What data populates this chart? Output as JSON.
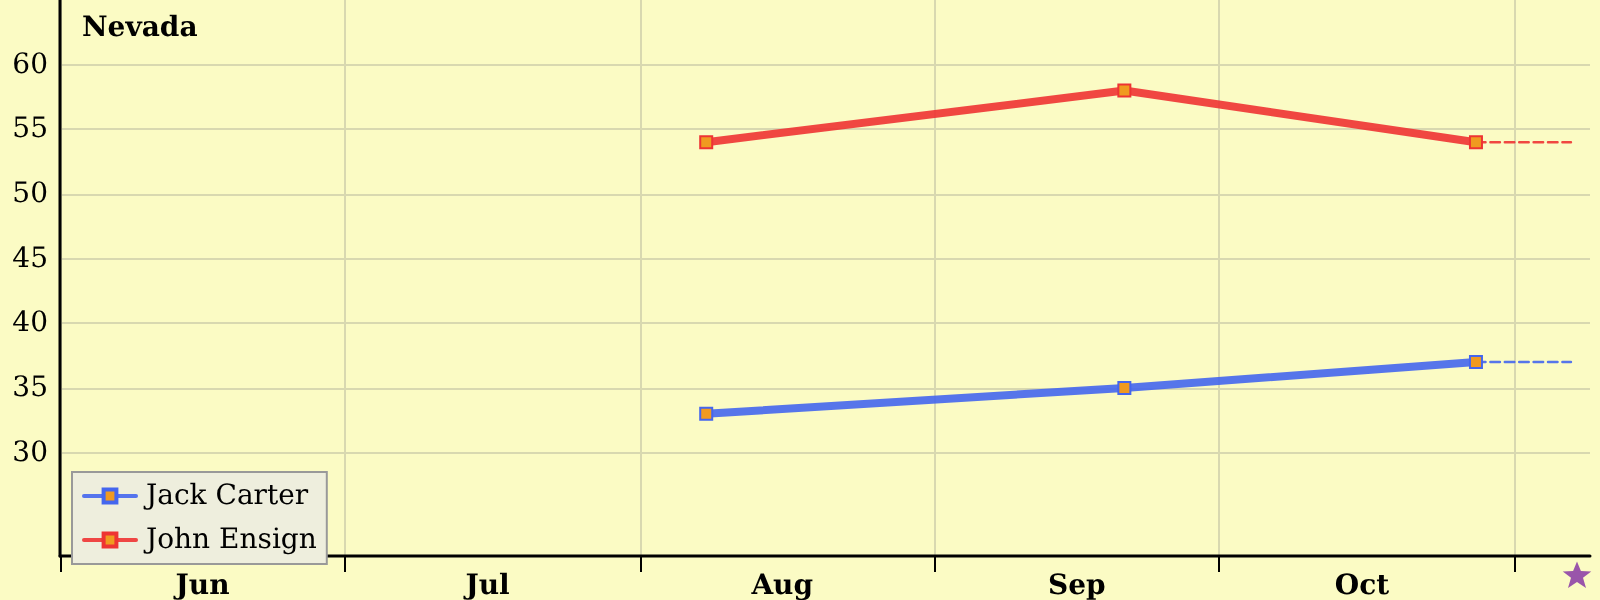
{
  "chart_data": {
    "type": "line",
    "title": "Nevada",
    "xlim": [
      "--06-01",
      "--11-09"
    ],
    "xticks": [
      {
        "value": "--06-01",
        "label": null
      },
      {
        "value": "--06-16",
        "label": "Jun"
      },
      {
        "value": "--07-01",
        "label": null
      },
      {
        "value": "--07-16",
        "label": "Jul"
      },
      {
        "value": "--08-01",
        "label": null
      },
      {
        "value": "--08-16",
        "label": "Aug"
      },
      {
        "value": "--09-01",
        "label": null
      },
      {
        "value": "--09-16",
        "label": "Sep"
      },
      {
        "value": "--10-01",
        "label": null
      },
      {
        "value": "--10-16",
        "label": "Oct"
      },
      {
        "value": "--11-01",
        "label": null
      }
    ],
    "ylim": [
      22,
      65
    ],
    "yticks": [
      30,
      35,
      40,
      45,
      50,
      55,
      60
    ],
    "series": [
      {
        "name": "Jack Carter",
        "color": "#4466ee",
        "x": [
          "--08-08",
          "--09-21",
          "--10-28"
        ],
        "values": [
          33,
          35,
          37
        ],
        "marker": "square",
        "line_style": "solid"
      },
      {
        "name": "John Ensign",
        "color": "#ee3333",
        "x": [
          "--08-08",
          "--09-21",
          "--10-28"
        ],
        "values": [
          54,
          58,
          54
        ],
        "marker": "square",
        "line_style": "solid"
      },
      {
        "color": "#4466ee",
        "x": [
          "--10-28",
          "--11-07"
        ],
        "values": [
          37,
          37
        ],
        "marker": "none",
        "line_style": "dashed"
      },
      {
        "color": "#ee3333",
        "x": [
          "--10-28",
          "--11-07"
        ],
        "values": [
          54,
          54
        ],
        "marker": "none",
        "line_style": "dashed"
      }
    ],
    "grid": true,
    "legend": "bottom left"
  }
}
